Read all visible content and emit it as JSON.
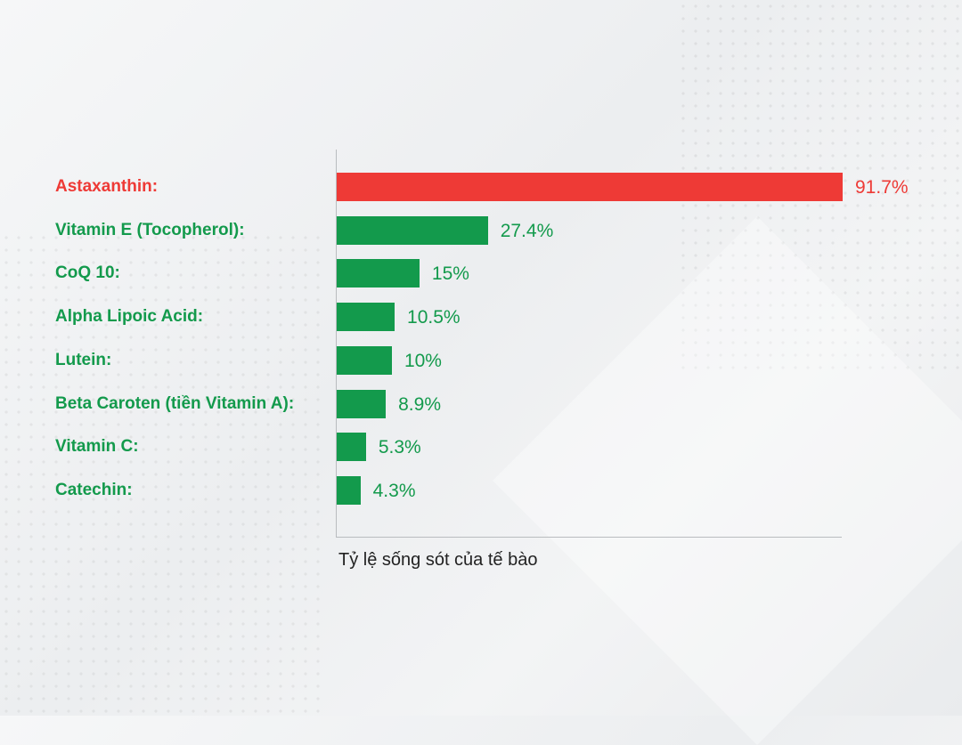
{
  "chart_data": {
    "type": "bar",
    "orientation": "horizontal",
    "categories": [
      "Astaxanthin:",
      "Vitamin E (Tocopherol):",
      "CoQ 10:",
      "Alpha Lipoic Acid:",
      "Lutein:",
      "Beta Caroten (tiền Vitamin A):",
      "Vitamin C:",
      "Catechin:"
    ],
    "values": [
      91.7,
      27.4,
      15,
      10.5,
      10,
      8.9,
      5.3,
      4.3
    ],
    "value_labels": [
      "91.7%",
      "27.4%",
      "15%",
      "10.5%",
      "10%",
      "8.9%",
      "5.3%",
      "4.3%"
    ],
    "colors": [
      "#ee3a36",
      "#139a4c",
      "#139a4c",
      "#139a4c",
      "#139a4c",
      "#139a4c",
      "#139a4c",
      "#139a4c"
    ],
    "xlabel": "Tỷ lệ sống sót của tế bào",
    "xlim": [
      0,
      91.7
    ],
    "grid": false
  }
}
